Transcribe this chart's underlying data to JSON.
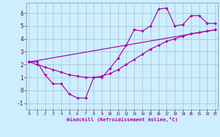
{
  "xlabel": "Windchill (Refroidissement éolien,°C)",
  "background_color": "#cceeff",
  "grid_color": "#aabbcc",
  "line_color": "#aa00aa",
  "line1_x": [
    0,
    1,
    2,
    3,
    4,
    5,
    6,
    7,
    8,
    9,
    10,
    11,
    12,
    13,
    14,
    15,
    16,
    17,
    18,
    19,
    20,
    21,
    22,
    23
  ],
  "line1_y": [
    2.2,
    2.2,
    1.2,
    0.5,
    0.5,
    -0.3,
    -0.6,
    -0.6,
    1.0,
    1.0,
    1.7,
    2.5,
    3.5,
    4.7,
    4.6,
    5.0,
    6.3,
    6.4,
    5.0,
    5.1,
    5.8,
    5.8,
    5.2,
    5.2
  ],
  "line2_x": [
    0,
    1,
    2,
    3,
    4,
    5,
    6,
    7,
    8,
    9,
    10,
    11,
    12,
    13,
    14,
    15,
    16,
    17,
    18,
    19,
    20,
    21,
    22,
    23
  ],
  "line2_y": [
    2.2,
    2.0,
    1.8,
    1.6,
    1.4,
    1.2,
    1.1,
    1.0,
    1.0,
    1.1,
    1.3,
    1.6,
    2.0,
    2.4,
    2.8,
    3.2,
    3.5,
    3.8,
    4.0,
    4.2,
    4.4,
    4.5,
    4.6,
    4.7
  ],
  "line3_x": [
    0,
    23
  ],
  "line3_y": [
    2.2,
    4.7
  ],
  "ylim": [
    -1.5,
    6.8
  ],
  "xlim": [
    -0.3,
    23.3
  ],
  "yticks": [
    -1,
    0,
    1,
    2,
    3,
    4,
    5,
    6
  ],
  "xticks": [
    0,
    1,
    2,
    3,
    4,
    5,
    6,
    7,
    8,
    9,
    10,
    11,
    12,
    13,
    14,
    15,
    16,
    17,
    18,
    19,
    20,
    21,
    22,
    23
  ]
}
